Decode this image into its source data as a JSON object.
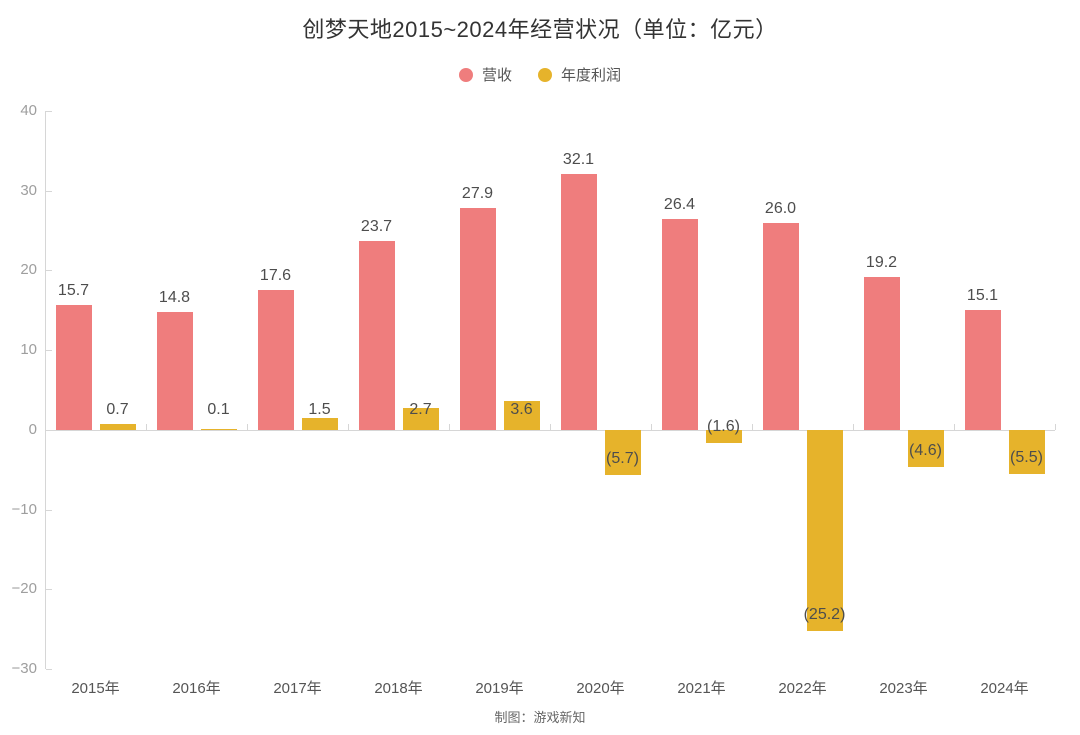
{
  "title": "创梦天地2015~2024年经营状况（单位：亿元）",
  "legend": {
    "items": [
      {
        "label": "营收",
        "color": "#ef7d7d"
      },
      {
        "label": "年度利润",
        "color": "#e6b32b"
      }
    ]
  },
  "footer": {
    "credit": "制图：游戏新知"
  },
  "colors": {
    "revenue": "#ef7d7d",
    "profit": "#e6b32b",
    "axis": "#d6d6d6",
    "y_label": "#9e9e9e",
    "x_label": "#555555",
    "value_label": "#4d4d4d"
  },
  "chart_data": {
    "type": "bar",
    "title": "创梦天地2015~2024年经营状况（单位：亿元）",
    "xlabel": "",
    "ylabel": "",
    "categories": [
      "2015年",
      "2016年",
      "2017年",
      "2018年",
      "2019年",
      "2020年",
      "2021年",
      "2022年",
      "2023年",
      "2024年"
    ],
    "series": [
      {
        "name": "营收",
        "color": "#ef7d7d",
        "values": [
          15.7,
          14.8,
          17.6,
          23.7,
          27.9,
          32.1,
          26.4,
          26.0,
          19.2,
          15.1
        ],
        "labels": [
          "15.7",
          "14.8",
          "17.6",
          "23.7",
          "27.9",
          "32.1",
          "26.4",
          "26.0",
          "19.2",
          "15.1"
        ]
      },
      {
        "name": "年度利润",
        "color": "#e6b32b",
        "values": [
          0.7,
          0.1,
          1.5,
          2.7,
          3.6,
          -5.7,
          -1.6,
          -25.2,
          -4.6,
          -5.5
        ],
        "labels": [
          "0.7",
          "0.1",
          "1.5",
          "2.7",
          "3.6",
          "(5.7)",
          "(1.6)",
          "(25.2)",
          "(4.6)",
          "(5.5)"
        ]
      }
    ],
    "ylim": [
      -30,
      40
    ],
    "yticks": [
      40,
      30,
      20,
      10,
      0,
      -10,
      -20,
      -30
    ],
    "ytick_labels": [
      "40",
      "30",
      "20",
      "10",
      "0",
      "−10",
      "−20",
      "−30"
    ],
    "grid": false,
    "legend_position": "top"
  }
}
